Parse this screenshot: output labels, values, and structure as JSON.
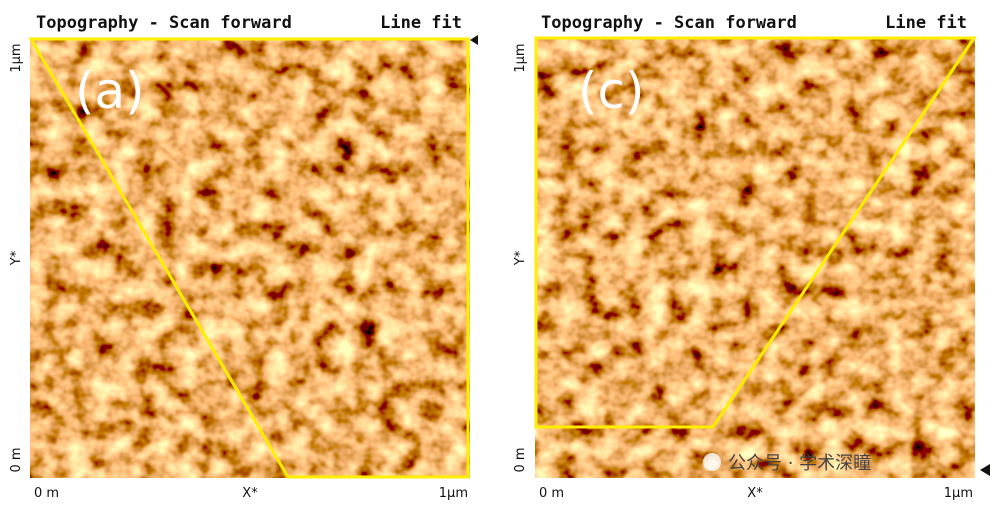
{
  "panels": [
    {
      "header_left": "Topography - Scan forward",
      "header_right": "Line fit",
      "label": "(a)",
      "y_top": "1µm",
      "y_mid": "Y*",
      "y_bottom": "0 m",
      "x_left": "0 m",
      "x_mid": "X*",
      "x_right": "1µm"
    },
    {
      "header_left": "Topography - Scan forward",
      "header_right": "Line fit",
      "label": "(c)",
      "y_top": "1µm",
      "y_mid": "Y*",
      "y_bottom": "0 m",
      "x_left": "0 m",
      "x_mid": "X*",
      "x_right": "1µm"
    }
  ],
  "watermark": "公众号 · 学术深瞳"
}
